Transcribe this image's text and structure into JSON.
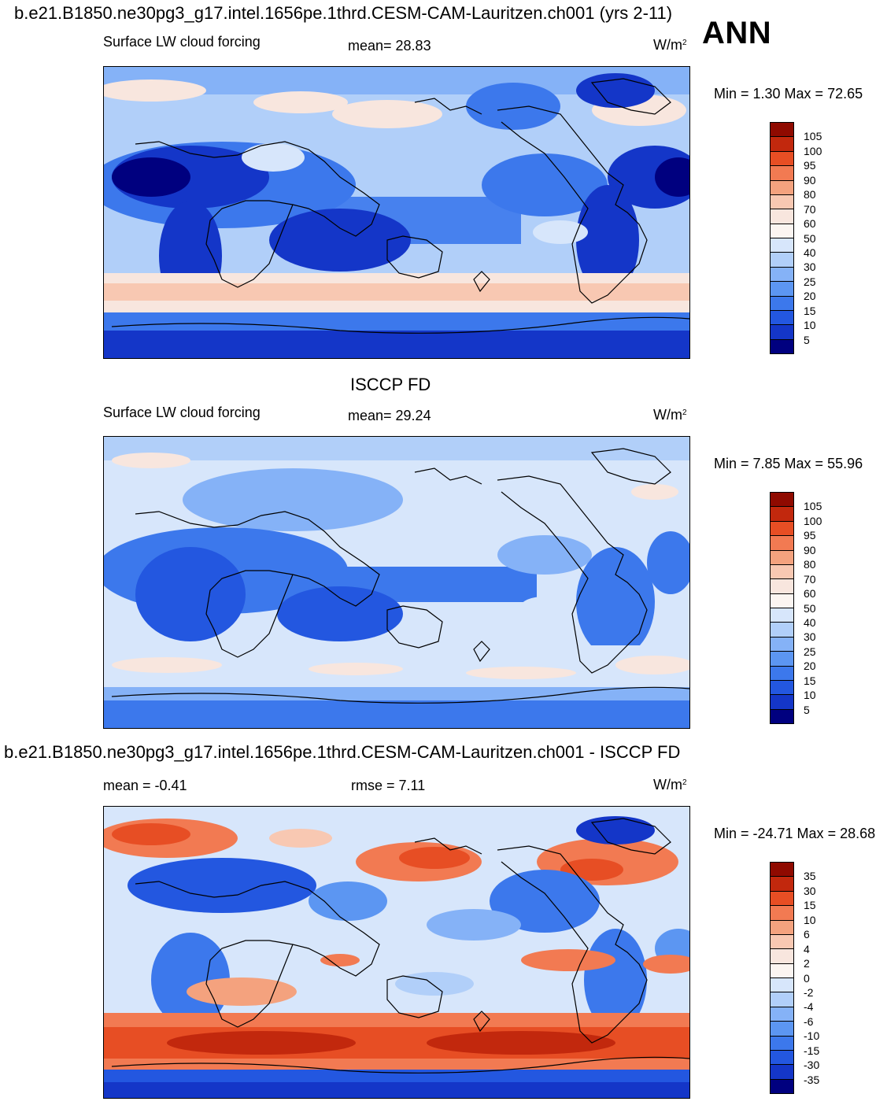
{
  "panel1": {
    "case_title": "b.e21.B1850.ne30pg3_g17.intel.1656pe.1thrd.CESM-CAM-Lauritzen.ch001 (yrs 2-11)",
    "season": "ANN",
    "variable": "Surface LW cloud forcing",
    "mean_text": "mean=  28.83",
    "units_base": "W/m",
    "units_exp": "2",
    "minmax_text": "Min =   1.30 Max =  72.65",
    "colorbar_labels": [
      "105",
      "100",
      "95",
      "90",
      "80",
      "70",
      "60",
      "50",
      "40",
      "30",
      "25",
      "20",
      "15",
      "10",
      "5"
    ]
  },
  "panel2": {
    "case_title": "ISCCP FD",
    "variable": "Surface LW cloud forcing",
    "mean_text": "mean=  29.24",
    "units_base": "W/m",
    "units_exp": "2",
    "minmax_text": "Min =   7.85 Max =  55.96",
    "colorbar_labels": [
      "105",
      "100",
      "95",
      "90",
      "80",
      "70",
      "60",
      "50",
      "40",
      "30",
      "25",
      "20",
      "15",
      "10",
      "5"
    ]
  },
  "panel3": {
    "case_title": "b.e21.B1850.ne30pg3_g17.intel.1656pe.1thrd.CESM-CAM-Lauritzen.ch001 - ISCCP FD",
    "mean_text": "mean =  -0.41",
    "rmse_text": "rmse =    7.11",
    "units_base": "W/m",
    "units_exp": "2",
    "minmax_text": "Min = -24.71 Max =  28.68",
    "colorbar_labels": [
      "35",
      "30",
      "15",
      "10",
      "6",
      "4",
      "2",
      "0",
      "-2",
      "-4",
      "-6",
      "-10",
      "-15",
      "-30",
      "-35"
    ]
  },
  "colors": {
    "field_scale": [
      "#00007f",
      "#0a1fa8",
      "#1436c8",
      "#2357e0",
      "#3c78ec",
      "#5c96f2",
      "#85b2f7",
      "#b1cff9",
      "#d7e6fb",
      "#f8e6de",
      "#f8c8b2",
      "#f4a27e",
      "#f27a52",
      "#e74e24",
      "#c2280d",
      "#8f0a00"
    ],
    "diff_scale": [
      "#00007f",
      "#0a1fa8",
      "#1436c8",
      "#2357e0",
      "#3c78ec",
      "#5c96f2",
      "#85b2f7",
      "#b1cff9",
      "#d7e6fb",
      "#f8e6de",
      "#f8c8b2",
      "#f4a27e",
      "#f27a52",
      "#e74e24",
      "#c2280d",
      "#8f0a00"
    ]
  }
}
